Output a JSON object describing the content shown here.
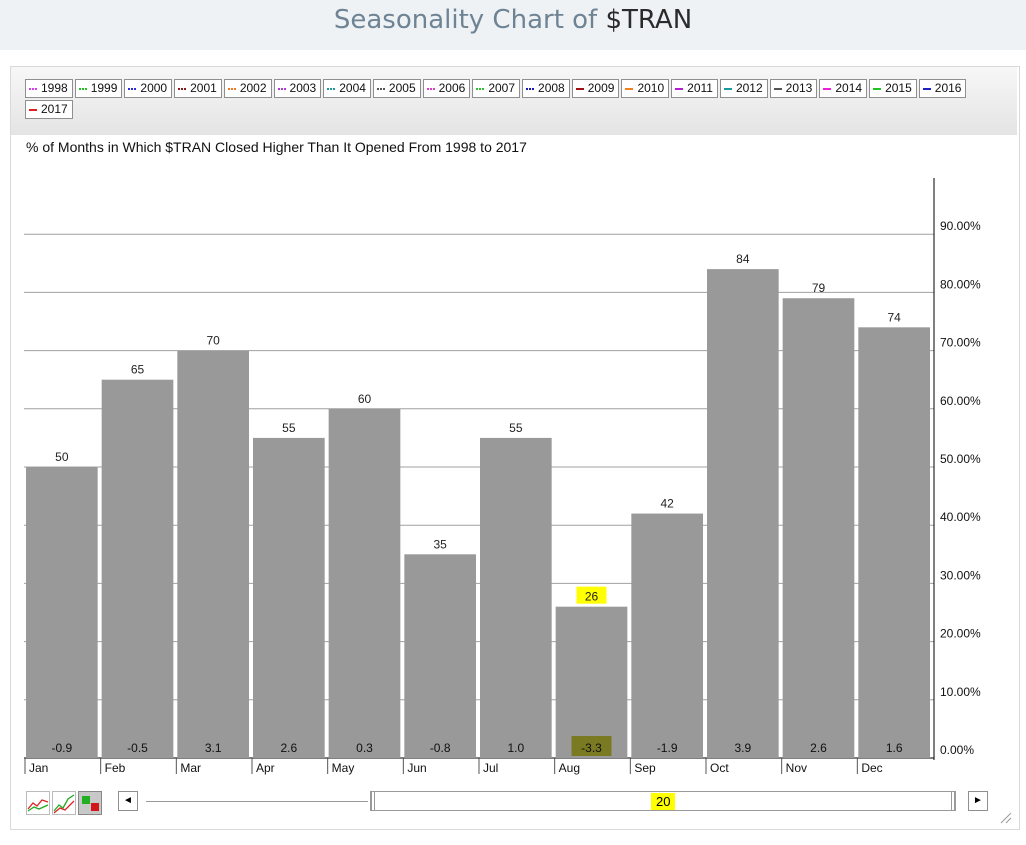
{
  "header": {
    "title_prefix": "Seasonality Chart of ",
    "ticker": "$TRAN"
  },
  "legend": [
    {
      "label": "1998",
      "color": "#d63cf0",
      "style": "dotted"
    },
    {
      "label": "1999",
      "color": "#22c422",
      "style": "dotted"
    },
    {
      "label": "2000",
      "color": "#2c2cd8",
      "style": "dotted"
    },
    {
      "label": "2001",
      "color": "#8b1a1a",
      "style": "dotted"
    },
    {
      "label": "2002",
      "color": "#f07a22",
      "style": "dotted"
    },
    {
      "label": "2003",
      "color": "#b03cd8",
      "style": "dotted"
    },
    {
      "label": "2004",
      "color": "#1f9a9a",
      "style": "dotted"
    },
    {
      "label": "2005",
      "color": "#555555",
      "style": "dotted"
    },
    {
      "label": "2006",
      "color": "#e43cc8",
      "style": "dotted"
    },
    {
      "label": "2007",
      "color": "#2fbf2f",
      "style": "dotted"
    },
    {
      "label": "2008",
      "color": "#1a1ab8",
      "style": "dotted"
    },
    {
      "label": "2009",
      "color": "#a01010",
      "style": "solid"
    },
    {
      "label": "2010",
      "color": "#f08020",
      "style": "solid"
    },
    {
      "label": "2011",
      "color": "#b020d0",
      "style": "solid"
    },
    {
      "label": "2012",
      "color": "#1a9a9a",
      "style": "solid"
    },
    {
      "label": "2013",
      "color": "#555555",
      "style": "solid"
    },
    {
      "label": "2014",
      "color": "#f020d8",
      "style": "solid"
    },
    {
      "label": "2015",
      "color": "#22c422",
      "style": "solid"
    },
    {
      "label": "2016",
      "color": "#2020c8",
      "style": "solid"
    },
    {
      "label": "2017",
      "color": "#e02020",
      "style": "solid"
    }
  ],
  "chart_data": {
    "type": "bar",
    "title": "% of Months in Which $TRAN Closed Higher Than It Opened From 1998 to 2017",
    "categories": [
      "Jan",
      "Feb",
      "Mar",
      "Apr",
      "May",
      "Jun",
      "Jul",
      "Aug",
      "Sep",
      "Oct",
      "Nov",
      "Dec"
    ],
    "values": [
      50,
      65,
      70,
      55,
      60,
      35,
      55,
      26,
      42,
      84,
      79,
      74
    ],
    "value_labels": [
      "50",
      "65",
      "70",
      "55",
      "60",
      "35",
      "55",
      "26",
      "42",
      "84",
      "79",
      "74"
    ],
    "avg_returns": [
      "-0.9",
      "-0.5",
      "3.1",
      "2.6",
      "0.3",
      "-0.8",
      "1.0",
      "-3.3",
      "-1.9",
      "3.9",
      "2.6",
      "1.6"
    ],
    "highlighted_category": "Aug",
    "bar_color": "#999999",
    "highlight_color": "#ffff00",
    "ylim": [
      0,
      100
    ],
    "yticks": [
      "0.00%",
      "10.00%",
      "20.00%",
      "30.00%",
      "40.00%",
      "50.00%",
      "60.00%",
      "70.00%",
      "80.00%",
      "90.00%"
    ],
    "y_axis_side": "right",
    "grid": true
  },
  "scrollbar": {
    "value": "20",
    "left_arrow": "◄",
    "right_arrow": "►"
  }
}
